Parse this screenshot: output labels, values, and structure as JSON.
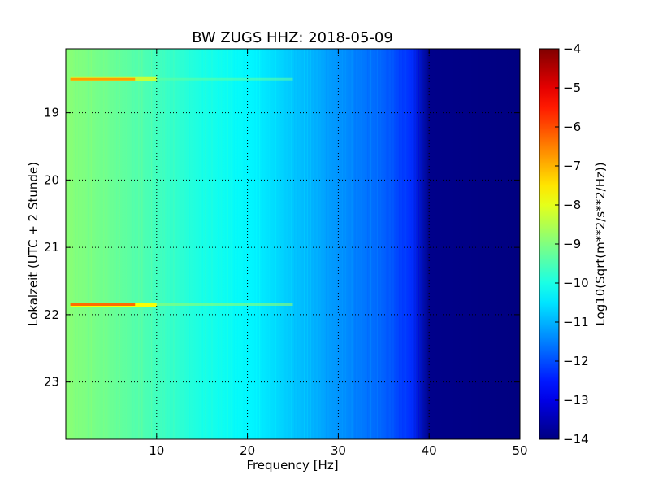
{
  "chart_data": {
    "type": "heatmap",
    "title": "BW ZUGS HHZ: 2018-05-09",
    "xlabel": "Frequency [Hz]",
    "ylabel": "Lokalzeit (UTC + 2 Stunde)",
    "xlim": [
      0,
      50
    ],
    "ylim": [
      18.05,
      23.85
    ],
    "y_inverted": true,
    "grid": true,
    "x_ticks": [
      {
        "value": 10,
        "label": "10"
      },
      {
        "value": 20,
        "label": "20"
      },
      {
        "value": 30,
        "label": "30"
      },
      {
        "value": 40,
        "label": "40"
      },
      {
        "value": 50,
        "label": "50"
      }
    ],
    "y_ticks": [
      {
        "value": 19,
        "label": "19"
      },
      {
        "value": 20,
        "label": "20"
      },
      {
        "value": 21,
        "label": "21"
      },
      {
        "value": 22,
        "label": "22"
      },
      {
        "value": 23,
        "label": "23"
      }
    ],
    "colorbar": {
      "label": "Log10(Sqrt(m**2/s**2/Hz))",
      "range": [
        -14,
        -4
      ],
      "colormap": "jet",
      "ticks": [
        {
          "value": -4,
          "label": "−4"
        },
        {
          "value": -5,
          "label": "−5"
        },
        {
          "value": -6,
          "label": "−6"
        },
        {
          "value": -7,
          "label": "−7"
        },
        {
          "value": -8,
          "label": "−8"
        },
        {
          "value": -9,
          "label": "−9"
        },
        {
          "value": -10,
          "label": "−10"
        },
        {
          "value": -11,
          "label": "−11"
        },
        {
          "value": -12,
          "label": "−12"
        },
        {
          "value": -13,
          "label": "−13"
        },
        {
          "value": -14,
          "label": "−14"
        }
      ]
    },
    "spectrum_profile": [
      {
        "f": 0,
        "v": -8.9
      },
      {
        "f": 5,
        "v": -9.2
      },
      {
        "f": 10,
        "v": -9.6
      },
      {
        "f": 15,
        "v": -10.0
      },
      {
        "f": 20,
        "v": -10.3
      },
      {
        "f": 25,
        "v": -10.8
      },
      {
        "f": 30,
        "v": -11.3
      },
      {
        "f": 35,
        "v": -11.8
      },
      {
        "f": 38,
        "v": -12.3
      },
      {
        "f": 40,
        "v": -13.9
      },
      {
        "f": 50,
        "v": -14.0
      }
    ],
    "events": [
      {
        "time": 18.5,
        "f_range": [
          0.5,
          10
        ],
        "peak_value": -6.8
      },
      {
        "time": 21.85,
        "f_range": [
          0.5,
          10
        ],
        "peak_value": -6.3
      }
    ]
  }
}
